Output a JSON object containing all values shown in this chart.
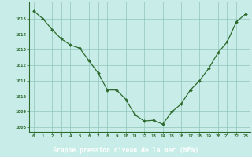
{
  "x": [
    0,
    1,
    2,
    3,
    4,
    5,
    6,
    7,
    8,
    9,
    10,
    11,
    12,
    13,
    14,
    15,
    16,
    17,
    18,
    19,
    20,
    21,
    22,
    23
  ],
  "y": [
    1015.5,
    1015.0,
    1014.3,
    1013.7,
    1013.3,
    1013.1,
    1012.3,
    1011.5,
    1010.4,
    1010.4,
    1009.8,
    1008.8,
    1008.4,
    1008.45,
    1008.2,
    1009.0,
    1009.5,
    1010.4,
    1011.0,
    1011.8,
    1012.8,
    1013.5,
    1014.8,
    1015.3
  ],
  "line_color": "#2d6a2d",
  "marker_color": "#2d6a2d",
  "bg_color": "#c8ede8",
  "plot_bg_color": "#c8ede8",
  "grid_color": "#90c4b8",
  "xlabel": "Graphe pression niveau de la mer (hPa)",
  "tick_label_color": "#2d6a2d",
  "ylim": [
    1007.7,
    1016.1
  ],
  "xlim": [
    -0.5,
    23.5
  ],
  "yticks": [
    1008,
    1009,
    1010,
    1011,
    1012,
    1013,
    1014,
    1015
  ],
  "xticks": [
    0,
    1,
    2,
    3,
    4,
    5,
    6,
    7,
    8,
    9,
    10,
    11,
    12,
    13,
    14,
    15,
    16,
    17,
    18,
    19,
    20,
    21,
    22,
    23
  ],
  "bottom_bar_color": "#2d6a2d",
  "bottom_text_color": "#ffffff"
}
